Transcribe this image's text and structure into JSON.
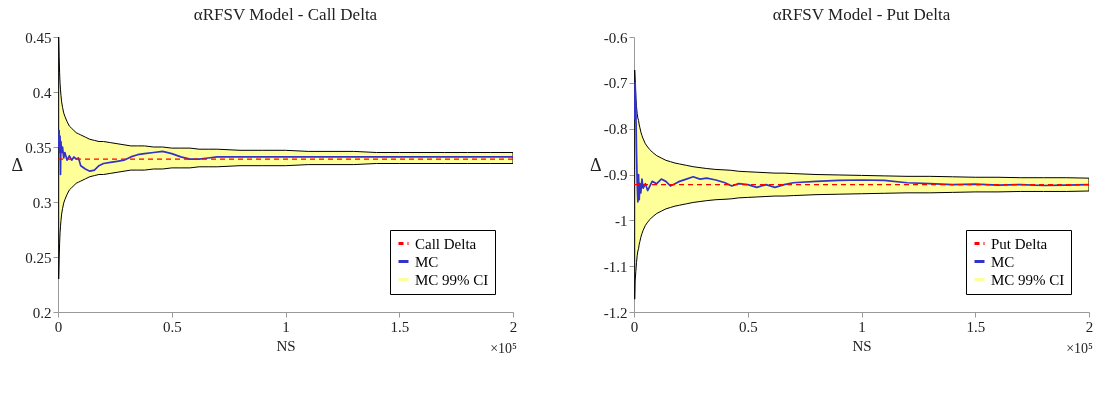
{
  "chart_data": [
    {
      "type": "line",
      "title": "αRFSV Model - Call Delta",
      "xlabel": "NS",
      "ylabel": "Δ",
      "xlim": [
        0,
        2
      ],
      "xticks": [
        0,
        0.5,
        1,
        1.5,
        2
      ],
      "ylim": [
        0.2,
        0.45
      ],
      "yticks": [
        0.2,
        0.25,
        0.3,
        0.35,
        0.4,
        0.45
      ],
      "legend": "bottom right",
      "grid": false,
      "annotations": [
        "×10⁵",
        "MC 99% CI"
      ],
      "series": [
        {
          "name": "Call Delta",
          "color": "#ff0000",
          "line_style": "dashed",
          "x": [
            0,
            2
          ],
          "values": [
            0.339,
            0.339
          ]
        },
        {
          "name": "MC",
          "color": "#3333cc",
          "x": [
            0.003,
            0.005,
            0.007,
            0.009,
            0.011,
            0.013,
            0.016,
            0.02,
            0.025,
            0.03,
            0.04,
            0.05,
            0.06,
            0.07,
            0.08,
            0.09,
            0.1,
            0.12,
            0.14,
            0.16,
            0.18,
            0.2,
            0.23,
            0.26,
            0.29,
            0.32,
            0.35,
            0.38,
            0.42,
            0.46,
            0.5,
            0.54,
            0.58,
            0.62,
            0.66,
            0.7,
            0.8,
            0.9,
            1,
            1.1,
            1.2,
            1.3,
            1.4,
            1.5,
            1.6,
            1.7,
            1.8,
            1.9,
            2
          ],
          "values": [
            0.35,
            0.365,
            0.345,
            0.36,
            0.325,
            0.355,
            0.345,
            0.35,
            0.34,
            0.345,
            0.338,
            0.342,
            0.338,
            0.341,
            0.339,
            0.34,
            0.333,
            0.33,
            0.328,
            0.329,
            0.333,
            0.335,
            0.336,
            0.337,
            0.338,
            0.341,
            0.343,
            0.344,
            0.345,
            0.346,
            0.344,
            0.341,
            0.339,
            0.339,
            0.34,
            0.341,
            0.341,
            0.341,
            0.341,
            0.341,
            0.341,
            0.341,
            0.341,
            0.341,
            0.341,
            0.341,
            0.341,
            0.341,
            0.341
          ],
          "upper": [
            0.45,
            0.432,
            0.418,
            0.408,
            0.402,
            0.397,
            0.391,
            0.386,
            0.381,
            0.378,
            0.373,
            0.369,
            0.367,
            0.365,
            0.363,
            0.362,
            0.361,
            0.359,
            0.357,
            0.356,
            0.355,
            0.355,
            0.354,
            0.353,
            0.352,
            0.351,
            0.351,
            0.351,
            0.35,
            0.35,
            0.349,
            0.349,
            0.349,
            0.348,
            0.348,
            0.348,
            0.347,
            0.347,
            0.347,
            0.346,
            0.346,
            0.346,
            0.345,
            0.345,
            0.345,
            0.345,
            0.345,
            0.345,
            0.345
          ],
          "lower": [
            0.23,
            0.248,
            0.262,
            0.272,
            0.278,
            0.283,
            0.289,
            0.294,
            0.299,
            0.302,
            0.307,
            0.311,
            0.313,
            0.315,
            0.317,
            0.318,
            0.319,
            0.321,
            0.323,
            0.324,
            0.325,
            0.325,
            0.326,
            0.327,
            0.328,
            0.329,
            0.329,
            0.329,
            0.33,
            0.33,
            0.331,
            0.331,
            0.331,
            0.332,
            0.332,
            0.332,
            0.333,
            0.333,
            0.333,
            0.334,
            0.334,
            0.334,
            0.335,
            0.335,
            0.335,
            0.335,
            0.335,
            0.335,
            0.335
          ]
        }
      ]
    },
    {
      "type": "line",
      "title": "αRFSV Model - Put Delta",
      "xlabel": "NS",
      "ylabel": "Δ",
      "xlim": [
        0,
        2
      ],
      "xticks": [
        0,
        0.5,
        1,
        1.5,
        2
      ],
      "ylim": [
        -1.2,
        -0.6
      ],
      "yticks": [
        -1.2,
        -1.1,
        -1,
        -0.9,
        -0.8,
        -0.7,
        -0.6
      ],
      "legend": "bottom right",
      "grid": false,
      "annotations": [
        "×10⁵",
        "MC 99% CI"
      ],
      "series": [
        {
          "name": "Put Delta",
          "color": "#ff0000",
          "line_style": "dashed",
          "x": [
            0,
            2
          ],
          "values": [
            -0.922,
            -0.922
          ]
        },
        {
          "name": "MC",
          "color": "#3333cc",
          "x": [
            0.003,
            0.005,
            0.008,
            0.011,
            0.014,
            0.017,
            0.02,
            0.023,
            0.026,
            0.03,
            0.035,
            0.04,
            0.05,
            0.06,
            0.07,
            0.08,
            0.1,
            0.12,
            0.14,
            0.16,
            0.18,
            0.2,
            0.23,
            0.26,
            0.29,
            0.32,
            0.36,
            0.4,
            0.43,
            0.46,
            0.5,
            0.54,
            0.58,
            0.62,
            0.66,
            0.7,
            0.8,
            0.9,
            1,
            1.1,
            1.2,
            1.3,
            1.4,
            1.5,
            1.6,
            1.7,
            1.8,
            1.9,
            2
          ],
          "values": [
            -0.78,
            -0.7,
            -0.75,
            -0.85,
            -0.92,
            -0.96,
            -0.9,
            -0.955,
            -0.92,
            -0.94,
            -0.91,
            -0.93,
            -0.92,
            -0.935,
            -0.925,
            -0.915,
            -0.92,
            -0.91,
            -0.915,
            -0.925,
            -0.92,
            -0.915,
            -0.91,
            -0.905,
            -0.91,
            -0.908,
            -0.912,
            -0.918,
            -0.925,
            -0.92,
            -0.922,
            -0.928,
            -0.922,
            -0.928,
            -0.922,
            -0.918,
            -0.915,
            -0.913,
            -0.912,
            -0.913,
            -0.918,
            -0.92,
            -0.922,
            -0.921,
            -0.923,
            -0.922,
            -0.924,
            -0.923,
            -0.922
          ],
          "upper": [
            -0.672,
            -0.69,
            -0.732,
            -0.752,
            -0.767,
            -0.777,
            -0.782,
            -0.792,
            -0.798,
            -0.807,
            -0.815,
            -0.822,
            -0.833,
            -0.84,
            -0.846,
            -0.851,
            -0.859,
            -0.864,
            -0.869,
            -0.872,
            -0.875,
            -0.877,
            -0.88,
            -0.883,
            -0.885,
            -0.887,
            -0.889,
            -0.89,
            -0.891,
            -0.893,
            -0.894,
            -0.895,
            -0.896,
            -0.897,
            -0.897,
            -0.898,
            -0.9,
            -0.901,
            -0.902,
            -0.903,
            -0.904,
            -0.904,
            -0.905,
            -0.906,
            -0.906,
            -0.907,
            -0.907,
            -0.907,
            -0.908
          ],
          "lower": [
            -1.172,
            -1.132,
            -1.112,
            -1.092,
            -1.077,
            -1.067,
            -1.062,
            -1.052,
            -1.046,
            -1.037,
            -1.029,
            -1.022,
            -1.011,
            -1.004,
            -0.998,
            -0.993,
            -0.985,
            -0.98,
            -0.975,
            -0.972,
            -0.969,
            -0.967,
            -0.964,
            -0.961,
            -0.959,
            -0.957,
            -0.955,
            -0.954,
            -0.953,
            -0.951,
            -0.95,
            -0.949,
            -0.948,
            -0.947,
            -0.947,
            -0.946,
            -0.944,
            -0.943,
            -0.942,
            -0.941,
            -0.94,
            -0.94,
            -0.939,
            -0.938,
            -0.938,
            -0.937,
            -0.937,
            -0.937,
            -0.936
          ]
        }
      ]
    }
  ]
}
